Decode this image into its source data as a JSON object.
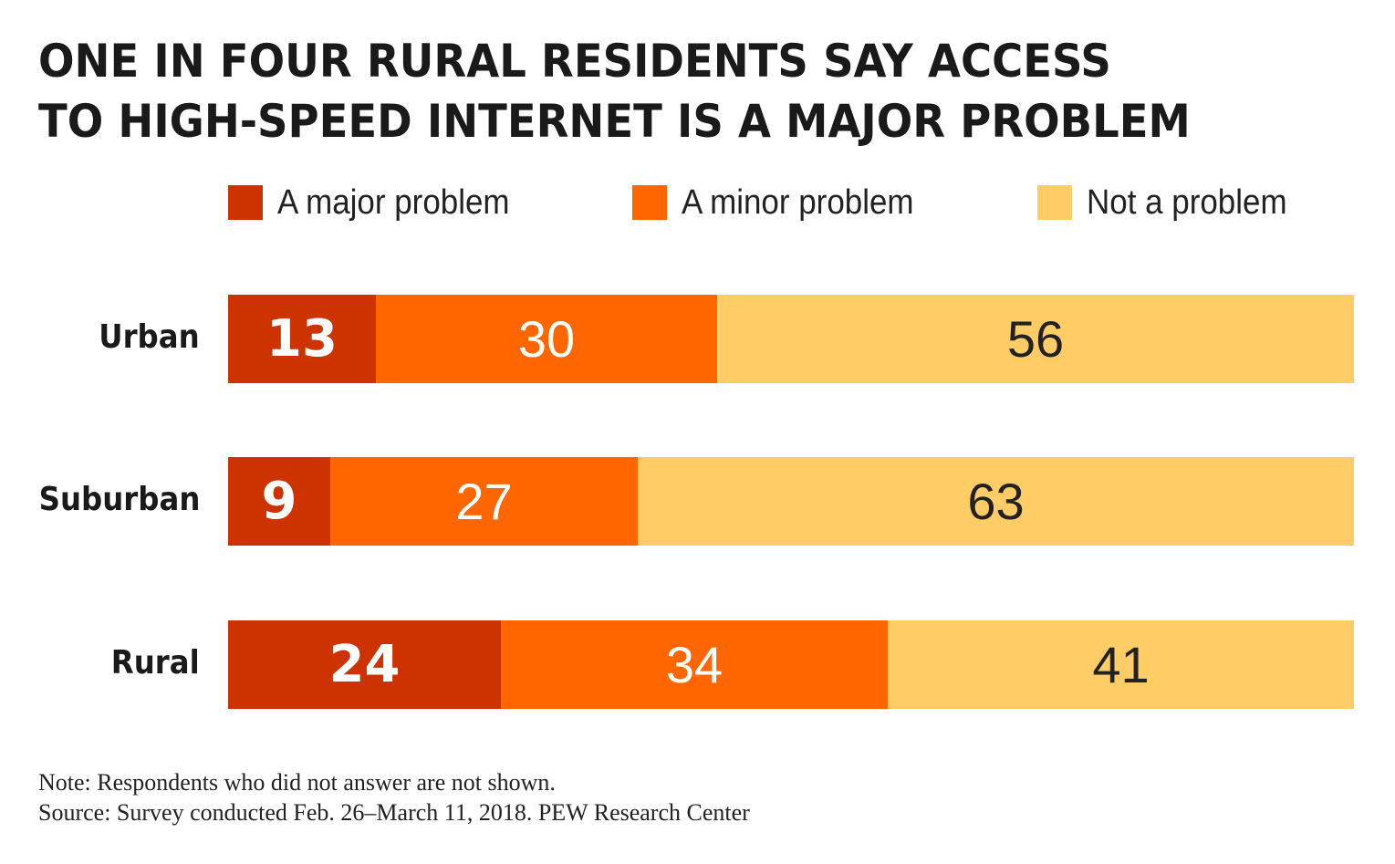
{
  "chart_data": {
    "type": "bar",
    "orientation": "horizontal",
    "stacked": true,
    "title": "ONE IN FOUR RURAL RESIDENTS SAY ACCESS TO HIGH-SPEED INTERNET IS A MAJOR PROBLEM",
    "title_lines": [
      "ONE IN FOUR RURAL RESIDENTS SAY ACCESS",
      "TO HIGH-SPEED INTERNET IS A MAJOR PROBLEM"
    ],
    "categories": [
      "Urban",
      "Suburban",
      "Rural"
    ],
    "series": [
      {
        "name": "A major problem",
        "color": "#CC3300",
        "values": [
          13,
          9,
          24
        ]
      },
      {
        "name": "A minor problem",
        "color": "#FF6600",
        "values": [
          30,
          27,
          34
        ]
      },
      {
        "name": "Not a problem",
        "color": "#FFCC66",
        "values": [
          56,
          63,
          41
        ]
      }
    ],
    "legend_placement": "top",
    "grid": false,
    "xlabel": "",
    "ylabel": "",
    "notes": [
      "Note: Respondents who did not answer are not shown.",
      "Source: Survey conducted Feb. 26–March 11, 2018. PEW Research Center"
    ]
  }
}
